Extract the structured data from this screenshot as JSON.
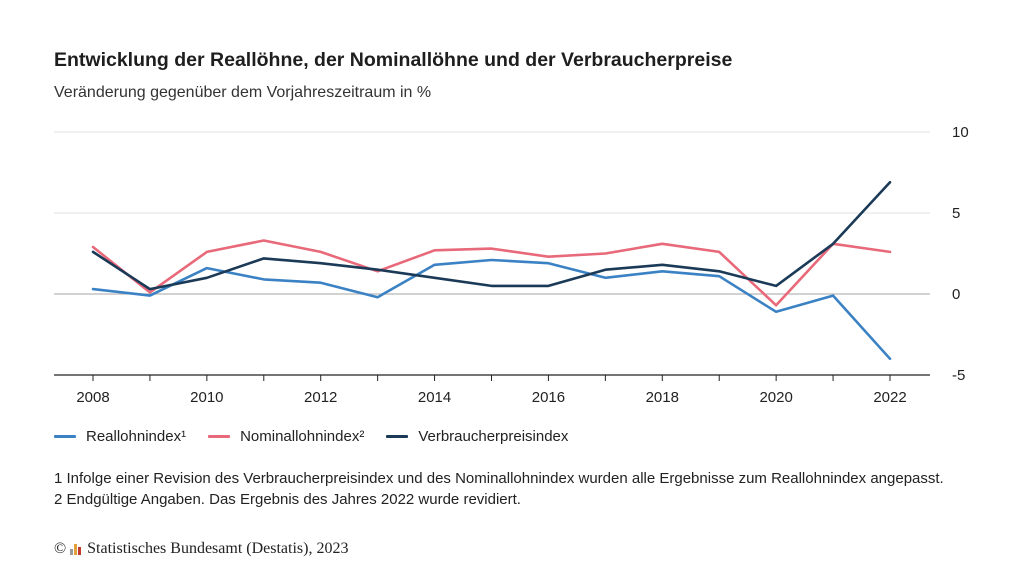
{
  "header": {
    "title": "Entwicklung der Reallöhne, der Nominallöhne und der Verbraucherpreise",
    "subtitle": "Veränderung gegenüber dem Vorjahreszeitraum in %"
  },
  "chart_data": {
    "type": "line",
    "x": [
      2008,
      2009,
      2010,
      2011,
      2012,
      2013,
      2014,
      2015,
      2016,
      2017,
      2018,
      2019,
      2020,
      2021,
      2022
    ],
    "x_tick_labels": [
      "2008",
      "2010",
      "2012",
      "2014",
      "2016",
      "2018",
      "2020",
      "2022"
    ],
    "ylim": [
      -5,
      10
    ],
    "y_ticks": [
      10,
      5,
      0,
      -5
    ],
    "grid": true,
    "legend_position": "bottom-left",
    "series": [
      {
        "name": "Reallohnindex¹",
        "color": "#3b82c4",
        "values": [
          0.3,
          -0.1,
          1.6,
          0.9,
          0.7,
          -0.2,
          1.8,
          2.1,
          1.9,
          1.0,
          1.4,
          1.1,
          -1.1,
          -0.1,
          -4.0
        ]
      },
      {
        "name": "Nominallohnindex²",
        "color": "#e8697a",
        "values": [
          2.9,
          0.1,
          2.6,
          3.3,
          2.6,
          1.4,
          2.7,
          2.8,
          2.3,
          2.5,
          3.1,
          2.6,
          -0.7,
          3.1,
          2.6
        ]
      },
      {
        "name": "Verbraucherpreisindex",
        "color": "#1b3a57",
        "values": [
          2.6,
          0.3,
          1.0,
          2.2,
          1.9,
          1.5,
          1.0,
          0.5,
          0.5,
          1.5,
          1.8,
          1.4,
          0.5,
          3.1,
          6.9
        ]
      }
    ]
  },
  "footnote": "1 Infolge einer Revision des Verbraucherpreisindex und des Nominallohnindex wurden alle Ergebnisse zum Reallohnindex angepasst. 2 Endgültige Angaben. Das Ergebnis des Jahres 2022 wurde revidiert.",
  "source": {
    "copyright": "©",
    "text": "Statistisches Bundesamt (Destatis), 2023",
    "logo_colors": [
      "#9a9a9a",
      "#e3a13b",
      "#c0392b"
    ]
  }
}
